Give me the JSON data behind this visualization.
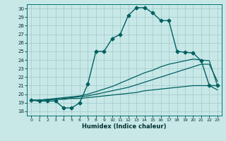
{
  "xlabel": "Humidex (Indice chaleur)",
  "bg_color": "#c8e8e8",
  "grid_color": "#a0c8c8",
  "line_color": "#006060",
  "xlim": [
    -0.5,
    23.5
  ],
  "ylim": [
    17.5,
    30.5
  ],
  "xticks": [
    0,
    1,
    2,
    3,
    4,
    5,
    6,
    7,
    8,
    9,
    10,
    11,
    12,
    13,
    14,
    15,
    16,
    17,
    18,
    19,
    20,
    21,
    22,
    23
  ],
  "yticks": [
    18,
    19,
    20,
    21,
    22,
    23,
    24,
    25,
    26,
    27,
    28,
    29,
    30
  ],
  "lines": [
    {
      "x": [
        0,
        1,
        2,
        3,
        4,
        5,
        6,
        7,
        8,
        9,
        10,
        11,
        12,
        13,
        14,
        15,
        16,
        17,
        18,
        19,
        20,
        21,
        22,
        23
      ],
      "y": [
        19.3,
        19.2,
        19.2,
        19.2,
        18.4,
        18.4,
        19.0,
        21.2,
        25.0,
        25.0,
        26.5,
        27.0,
        29.2,
        30.1,
        30.1,
        29.5,
        28.6,
        28.6,
        25.0,
        24.9,
        24.8,
        23.9,
        21.0,
        21.0
      ],
      "marker": "D",
      "markersize": 2.5,
      "linewidth": 1.0
    },
    {
      "x": [
        0,
        1,
        2,
        3,
        4,
        5,
        6,
        7,
        8,
        9,
        10,
        11,
        12,
        13,
        14,
        15,
        16,
        17,
        18,
        19,
        20,
        21,
        22,
        23
      ],
      "y": [
        19.3,
        19.3,
        19.4,
        19.5,
        19.6,
        19.7,
        19.8,
        20.0,
        20.3,
        20.6,
        20.9,
        21.3,
        21.7,
        22.1,
        22.5,
        22.8,
        23.2,
        23.5,
        23.7,
        23.9,
        24.1,
        24.0,
        23.9,
        21.0
      ],
      "marker": null,
      "linewidth": 0.9
    },
    {
      "x": [
        0,
        1,
        2,
        3,
        4,
        5,
        6,
        7,
        8,
        9,
        10,
        11,
        12,
        13,
        14,
        15,
        16,
        17,
        18,
        19,
        20,
        21,
        22,
        23
      ],
      "y": [
        19.3,
        19.3,
        19.4,
        19.4,
        19.5,
        19.6,
        19.7,
        19.8,
        20.0,
        20.2,
        20.4,
        20.6,
        20.8,
        21.1,
        21.4,
        21.7,
        22.0,
        22.3,
        22.6,
        22.9,
        23.2,
        23.5,
        23.5,
        21.5
      ],
      "marker": null,
      "linewidth": 0.9
    },
    {
      "x": [
        0,
        1,
        2,
        3,
        4,
        5,
        6,
        7,
        8,
        9,
        10,
        11,
        12,
        13,
        14,
        15,
        16,
        17,
        18,
        19,
        20,
        21,
        22,
        23
      ],
      "y": [
        19.3,
        19.3,
        19.3,
        19.4,
        19.4,
        19.5,
        19.5,
        19.6,
        19.7,
        19.8,
        19.9,
        20.0,
        20.1,
        20.2,
        20.4,
        20.5,
        20.6,
        20.7,
        20.8,
        20.9,
        21.0,
        21.0,
        21.0,
        20.5
      ],
      "marker": null,
      "linewidth": 0.9
    }
  ]
}
